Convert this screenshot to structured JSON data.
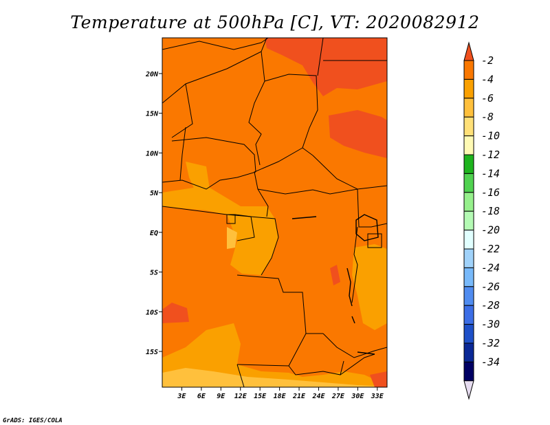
{
  "chart_data": {
    "type": "heatmap",
    "title": "Temperature at 500hPa [C], VT: 2020082912",
    "variable": "Temperature",
    "level": "500hPa",
    "units": "C",
    "valid_time": "2020082912",
    "x_ticks": [
      "3E",
      "6E",
      "9E",
      "12E",
      "15E",
      "18E",
      "21E",
      "24E",
      "27E",
      "30E",
      "33E"
    ],
    "y_ticks": [
      "20N",
      "15N",
      "10N",
      "5N",
      "EQ",
      "5S",
      "10S",
      "15S"
    ],
    "x_tick_values": [
      3,
      6,
      9,
      12,
      15,
      18,
      21,
      24,
      27,
      30,
      33
    ],
    "y_tick_values": [
      20,
      15,
      10,
      5,
      0,
      -5,
      -10,
      -15
    ],
    "lon_range": [
      0,
      34.5
    ],
    "lat_range": [
      -19.5,
      24.5
    ],
    "colorbar": {
      "labels": [
        "-2",
        "-4",
        "-6",
        "-8",
        "-10",
        "-12",
        "-14",
        "-16",
        "-18",
        "-20",
        "-22",
        "-24",
        "-26",
        "-28",
        "-30",
        "-32",
        "-34"
      ],
      "levels": [
        -2,
        -4,
        -6,
        -8,
        -10,
        -12,
        -14,
        -16,
        -18,
        -20,
        -22,
        -24,
        -26,
        -28,
        -30,
        -32,
        -34
      ],
      "colors": [
        "#f0501e",
        "#fa7800",
        "#faa000",
        "#ffc03c",
        "#ffe078",
        "#fffab4",
        "#1eb41e",
        "#50d250",
        "#96f08c",
        "#b4fab4",
        "#e1ffff",
        "#a0d2fa",
        "#78b9fa",
        "#508cf0",
        "#3c6ee6",
        "#1e50c8",
        "#0a2896",
        "#000064",
        "#e6dcf0"
      ]
    },
    "dominant_band": "-6 to -4",
    "field_colors": {
      "warm_-2_to_-4": "#f0501e",
      "band_-4_to_-6": "#fa7800",
      "band_-6_to_-8": "#faa000",
      "band_-8_to_-10": "#ffc03c",
      "band_-10_to_-12": "#ffe078"
    }
  },
  "footer": {
    "credit": "GrADS: IGES/COLA"
  }
}
